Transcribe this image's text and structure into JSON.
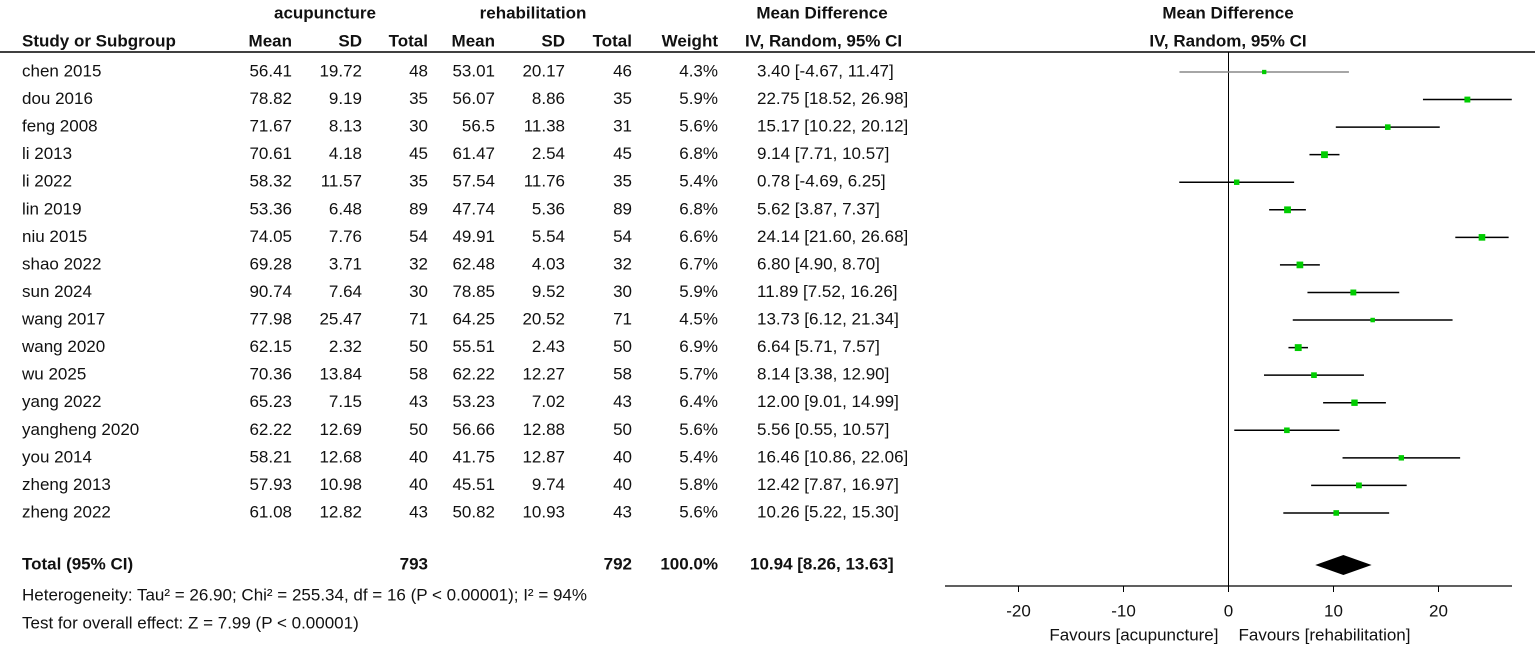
{
  "chart_data": {
    "type": "forest",
    "headers": {
      "group1": "acupuncture",
      "group2": "rehabilitation",
      "effect": "Mean Difference",
      "study": "Study or Subgroup",
      "mean1": "Mean",
      "sd1": "SD",
      "total1": "Total",
      "mean2": "Mean",
      "sd2": "SD",
      "total2": "Total",
      "weight": "Weight",
      "method": "IV, Random, 95% CI",
      "plot_title": "Mean Difference",
      "plot_method": "IV, Random, 95% CI"
    },
    "studies": [
      {
        "study": "chen 2015",
        "acu": [
          "56.41",
          "19.72",
          "48"
        ],
        "reh": [
          "53.01",
          "20.17",
          "46"
        ],
        "weight": 4.3,
        "weight_label": "4.3%",
        "md": 3.4,
        "lower": -4.67,
        "upper": 11.47,
        "ci_label": "3.40 [-4.67, 11.47]"
      },
      {
        "study": "dou 2016",
        "acu": [
          "78.82",
          "9.19",
          "35"
        ],
        "reh": [
          "56.07",
          "8.86",
          "35"
        ],
        "weight": 5.9,
        "weight_label": "5.9%",
        "md": 22.75,
        "lower": 18.52,
        "upper": 26.98,
        "ci_label": "22.75 [18.52, 26.98]"
      },
      {
        "study": "feng 2008",
        "acu": [
          "71.67",
          "8.13",
          "30"
        ],
        "reh": [
          "56.5",
          "11.38",
          "31"
        ],
        "weight": 5.6,
        "weight_label": "5.6%",
        "md": 15.17,
        "lower": 10.22,
        "upper": 20.12,
        "ci_label": "15.17 [10.22, 20.12]"
      },
      {
        "study": "li 2013",
        "acu": [
          "70.61",
          "4.18",
          "45"
        ],
        "reh": [
          "61.47",
          "2.54",
          "45"
        ],
        "weight": 6.8,
        "weight_label": "6.8%",
        "md": 9.14,
        "lower": 7.71,
        "upper": 10.57,
        "ci_label": "9.14 [7.71, 10.57]"
      },
      {
        "study": "li 2022",
        "acu": [
          "58.32",
          "11.57",
          "35"
        ],
        "reh": [
          "57.54",
          "11.76",
          "35"
        ],
        "weight": 5.4,
        "weight_label": "5.4%",
        "md": 0.78,
        "lower": -4.69,
        "upper": 6.25,
        "ci_label": "0.78 [-4.69, 6.25]"
      },
      {
        "study": "lin 2019",
        "acu": [
          "53.36",
          "6.48",
          "89"
        ],
        "reh": [
          "47.74",
          "5.36",
          "89"
        ],
        "weight": 6.8,
        "weight_label": "6.8%",
        "md": 5.62,
        "lower": 3.87,
        "upper": 7.37,
        "ci_label": "5.62 [3.87, 7.37]"
      },
      {
        "study": "niu 2015",
        "acu": [
          "74.05",
          "7.76",
          "54"
        ],
        "reh": [
          "49.91",
          "5.54",
          "54"
        ],
        "weight": 6.6,
        "weight_label": "6.6%",
        "md": 24.14,
        "lower": 21.6,
        "upper": 26.68,
        "ci_label": "24.14 [21.60, 26.68]"
      },
      {
        "study": "shao 2022",
        "acu": [
          "69.28",
          "3.71",
          "32"
        ],
        "reh": [
          "62.48",
          "4.03",
          "32"
        ],
        "weight": 6.7,
        "weight_label": "6.7%",
        "md": 6.8,
        "lower": 4.9,
        "upper": 8.7,
        "ci_label": "6.80 [4.90, 8.70]"
      },
      {
        "study": "sun 2024",
        "acu": [
          "90.74",
          "7.64",
          "30"
        ],
        "reh": [
          "78.85",
          "9.52",
          "30"
        ],
        "weight": 5.9,
        "weight_label": "5.9%",
        "md": 11.89,
        "lower": 7.52,
        "upper": 16.26,
        "ci_label": "11.89 [7.52, 16.26]"
      },
      {
        "study": "wang 2017",
        "acu": [
          "77.98",
          "25.47",
          "71"
        ],
        "reh": [
          "64.25",
          "20.52",
          "71"
        ],
        "weight": 4.5,
        "weight_label": "4.5%",
        "md": 13.73,
        "lower": 6.12,
        "upper": 21.34,
        "ci_label": "13.73 [6.12, 21.34]"
      },
      {
        "study": "wang 2020",
        "acu": [
          "62.15",
          "2.32",
          "50"
        ],
        "reh": [
          "55.51",
          "2.43",
          "50"
        ],
        "weight": 6.9,
        "weight_label": "6.9%",
        "md": 6.64,
        "lower": 5.71,
        "upper": 7.57,
        "ci_label": "6.64 [5.71, 7.57]"
      },
      {
        "study": "wu 2025",
        "acu": [
          "70.36",
          "13.84",
          "58"
        ],
        "reh": [
          "62.22",
          "12.27",
          "58"
        ],
        "weight": 5.7,
        "weight_label": "5.7%",
        "md": 8.14,
        "lower": 3.38,
        "upper": 12.9,
        "ci_label": "8.14 [3.38, 12.90]"
      },
      {
        "study": "yang 2022",
        "acu": [
          "65.23",
          "7.15",
          "43"
        ],
        "reh": [
          "53.23",
          "7.02",
          "43"
        ],
        "weight": 6.4,
        "weight_label": "6.4%",
        "md": 12.0,
        "lower": 9.01,
        "upper": 14.99,
        "ci_label": "12.00 [9.01, 14.99]"
      },
      {
        "study": "yangheng 2020",
        "acu": [
          "62.22",
          "12.69",
          "50"
        ],
        "reh": [
          "56.66",
          "12.88",
          "50"
        ],
        "weight": 5.6,
        "weight_label": "5.6%",
        "md": 5.56,
        "lower": 0.55,
        "upper": 10.57,
        "ci_label": "5.56 [0.55, 10.57]"
      },
      {
        "study": "you 2014",
        "acu": [
          "58.21",
          "12.68",
          "40"
        ],
        "reh": [
          "41.75",
          "12.87",
          "40"
        ],
        "weight": 5.4,
        "weight_label": "5.4%",
        "md": 16.46,
        "lower": 10.86,
        "upper": 22.06,
        "ci_label": "16.46 [10.86, 22.06]"
      },
      {
        "study": "zheng 2013",
        "acu": [
          "57.93",
          "10.98",
          "40"
        ],
        "reh": [
          "45.51",
          "9.74",
          "40"
        ],
        "weight": 5.8,
        "weight_label": "5.8%",
        "md": 12.42,
        "lower": 7.87,
        "upper": 16.97,
        "ci_label": "12.42 [7.87, 16.97]"
      },
      {
        "study": "zheng 2022",
        "acu": [
          "61.08",
          "12.82",
          "43"
        ],
        "reh": [
          "50.82",
          "10.93",
          "43"
        ],
        "weight": 5.6,
        "weight_label": "5.6%",
        "md": 10.26,
        "lower": 5.22,
        "upper": 15.3,
        "ci_label": "10.26 [5.22, 15.30]"
      }
    ],
    "total": {
      "label": "Total (95% CI)",
      "acu_total": "793",
      "reh_total": "792",
      "weight_label": "100.0%",
      "md": 10.94,
      "lower": 8.26,
      "upper": 13.63,
      "ci_label": "10.94 [8.26, 13.63]"
    },
    "heterogeneity": "Heterogeneity: Tau² = 26.90; Chi² = 255.34, df = 16 (P < 0.00001); I² = 94%",
    "overall_test": "Test for overall effect: Z = 7.99 (P < 0.00001)",
    "xlim": [
      -27,
      27
    ],
    "xticks": [
      -20,
      -10,
      0,
      10,
      20
    ],
    "favours_left": "Favours [acupuncture]",
    "favours_right": "Favours [rehabilitation]",
    "square_color": "#00cc00",
    "diamond_color": "#000000"
  }
}
